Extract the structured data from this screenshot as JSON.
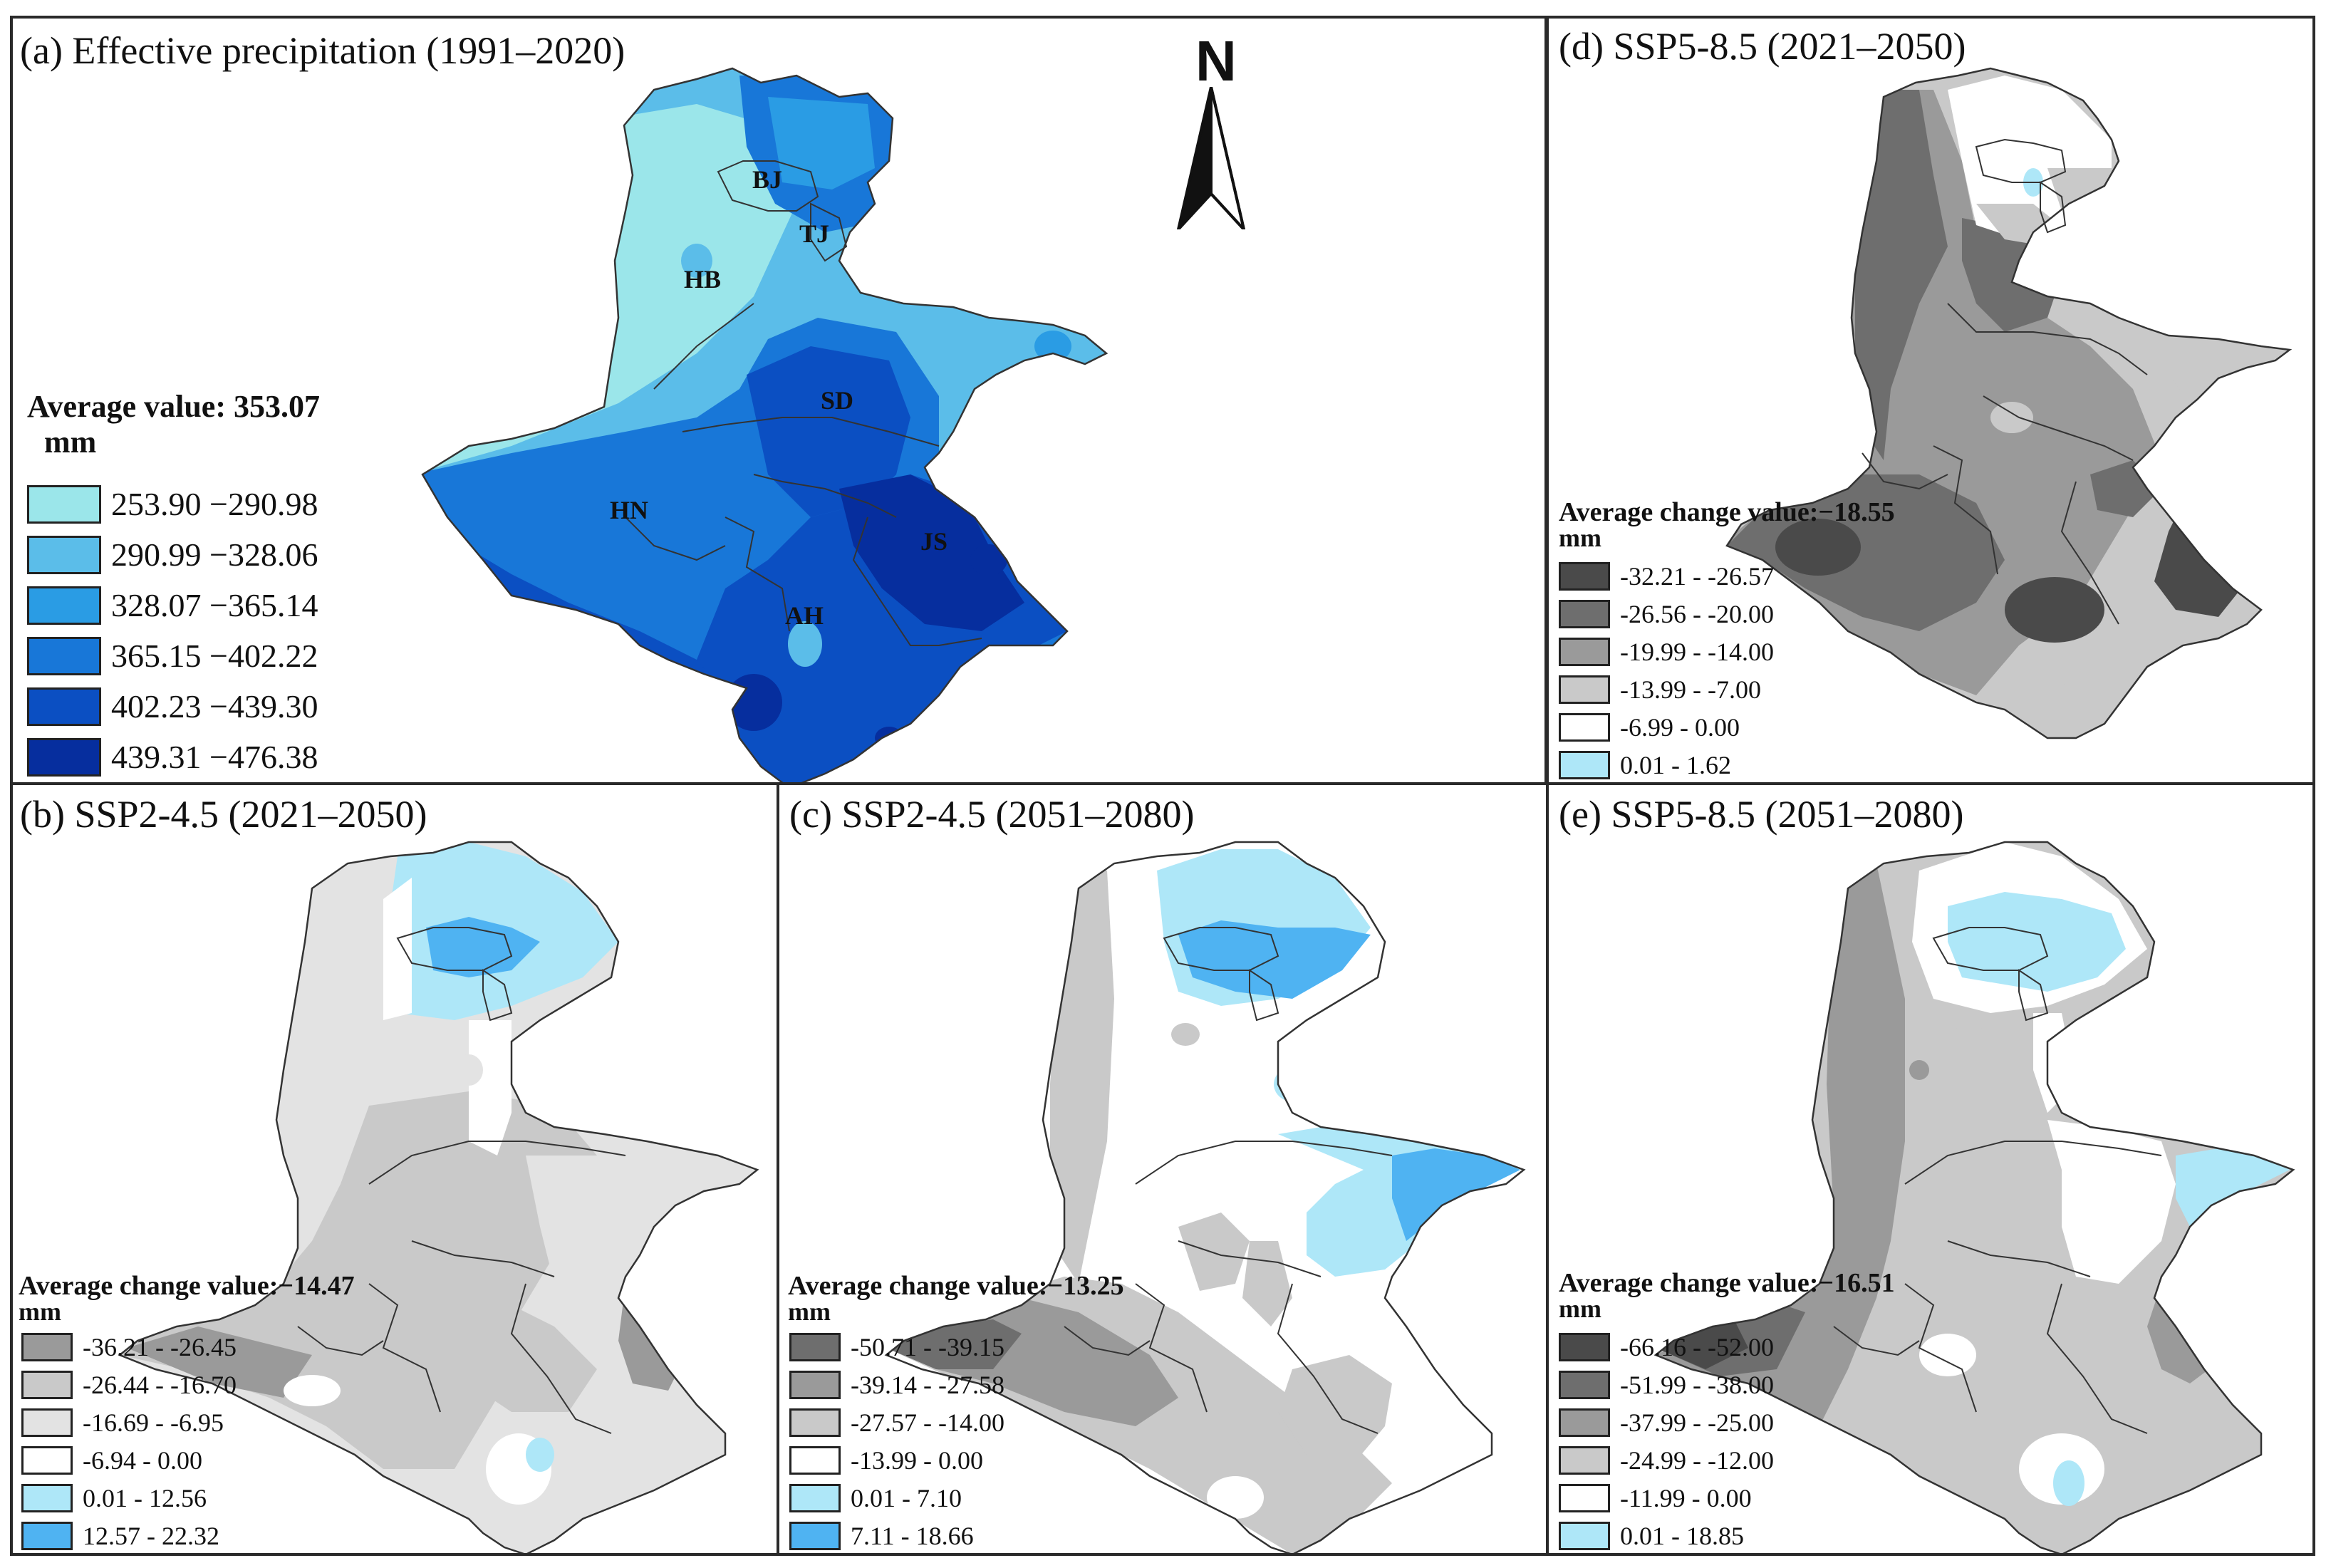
{
  "colors": {
    "blue1": "#9be6ea",
    "blue2": "#5bbde9",
    "blue3": "#2a9ce4",
    "blue4": "#1877d8",
    "blue5": "#0b4fc2",
    "blue6": "#062e9e",
    "g_dark2": "#4a4a4a",
    "g_dark": "#6e6e6e",
    "g_mid": "#9a9a9a",
    "g_light": "#c9c9c9",
    "g_vlight": "#e3e3e3",
    "white": "#ffffff",
    "cyan_light": "#aee7f8",
    "cyan_mid": "#4fb3f2",
    "border": "#2a2a2a"
  },
  "north": {
    "label": "N",
    "icon": "north-arrow-icon"
  },
  "panels": [
    {
      "id": "a",
      "title": "(a) Effective precipitation (1991–2020)",
      "legend_title_line1": "Average value: 353.07",
      "legend_title_line2": "mm",
      "provinces": [
        "BJ",
        "TJ",
        "HB",
        "SD",
        "HN",
        "JS",
        "AH"
      ],
      "legend": [
        {
          "label": "253.90 −290.98",
          "color": "#9be6ea"
        },
        {
          "label": "290.99 −328.06",
          "color": "#5bbde9"
        },
        {
          "label": "328.07 −365.14",
          "color": "#2a9ce4"
        },
        {
          "label": "365.15 −402.22",
          "color": "#1877d8"
        },
        {
          "label": "402.23 −439.30",
          "color": "#0b4fc2"
        },
        {
          "label": "439.31 −476.38",
          "color": "#062e9e"
        }
      ]
    },
    {
      "id": "b",
      "title": "(b) SSP2-4.5 (2021–2050)",
      "legend_title_line1": "Average change value:−14.47",
      "legend_title_line2": "mm",
      "legend": [
        {
          "label": "-36.21 - -26.45",
          "color": "#9a9a9a"
        },
        {
          "label": "-26.44 - -16.70",
          "color": "#c9c9c9"
        },
        {
          "label": "-16.69 - -6.95",
          "color": "#e3e3e3"
        },
        {
          "label": "-6.94 - 0.00",
          "color": "#ffffff"
        },
        {
          "label": "0.01 - 12.56",
          "color": "#aee7f8"
        },
        {
          "label": "12.57 - 22.32",
          "color": "#4fb3f2"
        }
      ]
    },
    {
      "id": "c",
      "title": "(c) SSP2-4.5 (2051–2080)",
      "legend_title_line1": "Average change value:−13.25",
      "legend_title_line2": "mm",
      "legend": [
        {
          "label": "-50.71 - -39.15",
          "color": "#6e6e6e"
        },
        {
          "label": "-39.14 - -27.58",
          "color": "#9a9a9a"
        },
        {
          "label": "-27.57 - -14.00",
          "color": "#c9c9c9"
        },
        {
          "label": "-13.99 - 0.00",
          "color": "#ffffff"
        },
        {
          "label": "0.01 - 7.10",
          "color": "#aee7f8"
        },
        {
          "label": "7.11 - 18.66",
          "color": "#4fb3f2"
        }
      ]
    },
    {
      "id": "d",
      "title": "(d) SSP5-8.5 (2021–2050)",
      "legend_title_line1": "Average change value:−18.55",
      "legend_title_line2": "mm",
      "legend": [
        {
          "label": "-32.21 - -26.57",
          "color": "#4a4a4a"
        },
        {
          "label": "-26.56 - -20.00",
          "color": "#6e6e6e"
        },
        {
          "label": "-19.99 - -14.00",
          "color": "#9a9a9a"
        },
        {
          "label": "-13.99 - -7.00",
          "color": "#c9c9c9"
        },
        {
          "label": "-6.99 - 0.00",
          "color": "#ffffff"
        },
        {
          "label": "0.01 - 1.62",
          "color": "#aee7f8"
        }
      ]
    },
    {
      "id": "e",
      "title": "(e) SSP5-8.5 (2051–2080)",
      "legend_title_line1": "Average change value:−16.51",
      "legend_title_line2": "mm",
      "legend": [
        {
          "label": "-66.16 - -52.00",
          "color": "#4a4a4a"
        },
        {
          "label": "-51.99 - -38.00",
          "color": "#6e6e6e"
        },
        {
          "label": "-37.99 - -25.00",
          "color": "#9a9a9a"
        },
        {
          "label": "-24.99 - -12.00",
          "color": "#c9c9c9"
        },
        {
          "label": "-11.99 - 0.00",
          "color": "#ffffff"
        },
        {
          "label": "0.01 - 18.85",
          "color": "#aee7f8"
        }
      ]
    }
  ]
}
